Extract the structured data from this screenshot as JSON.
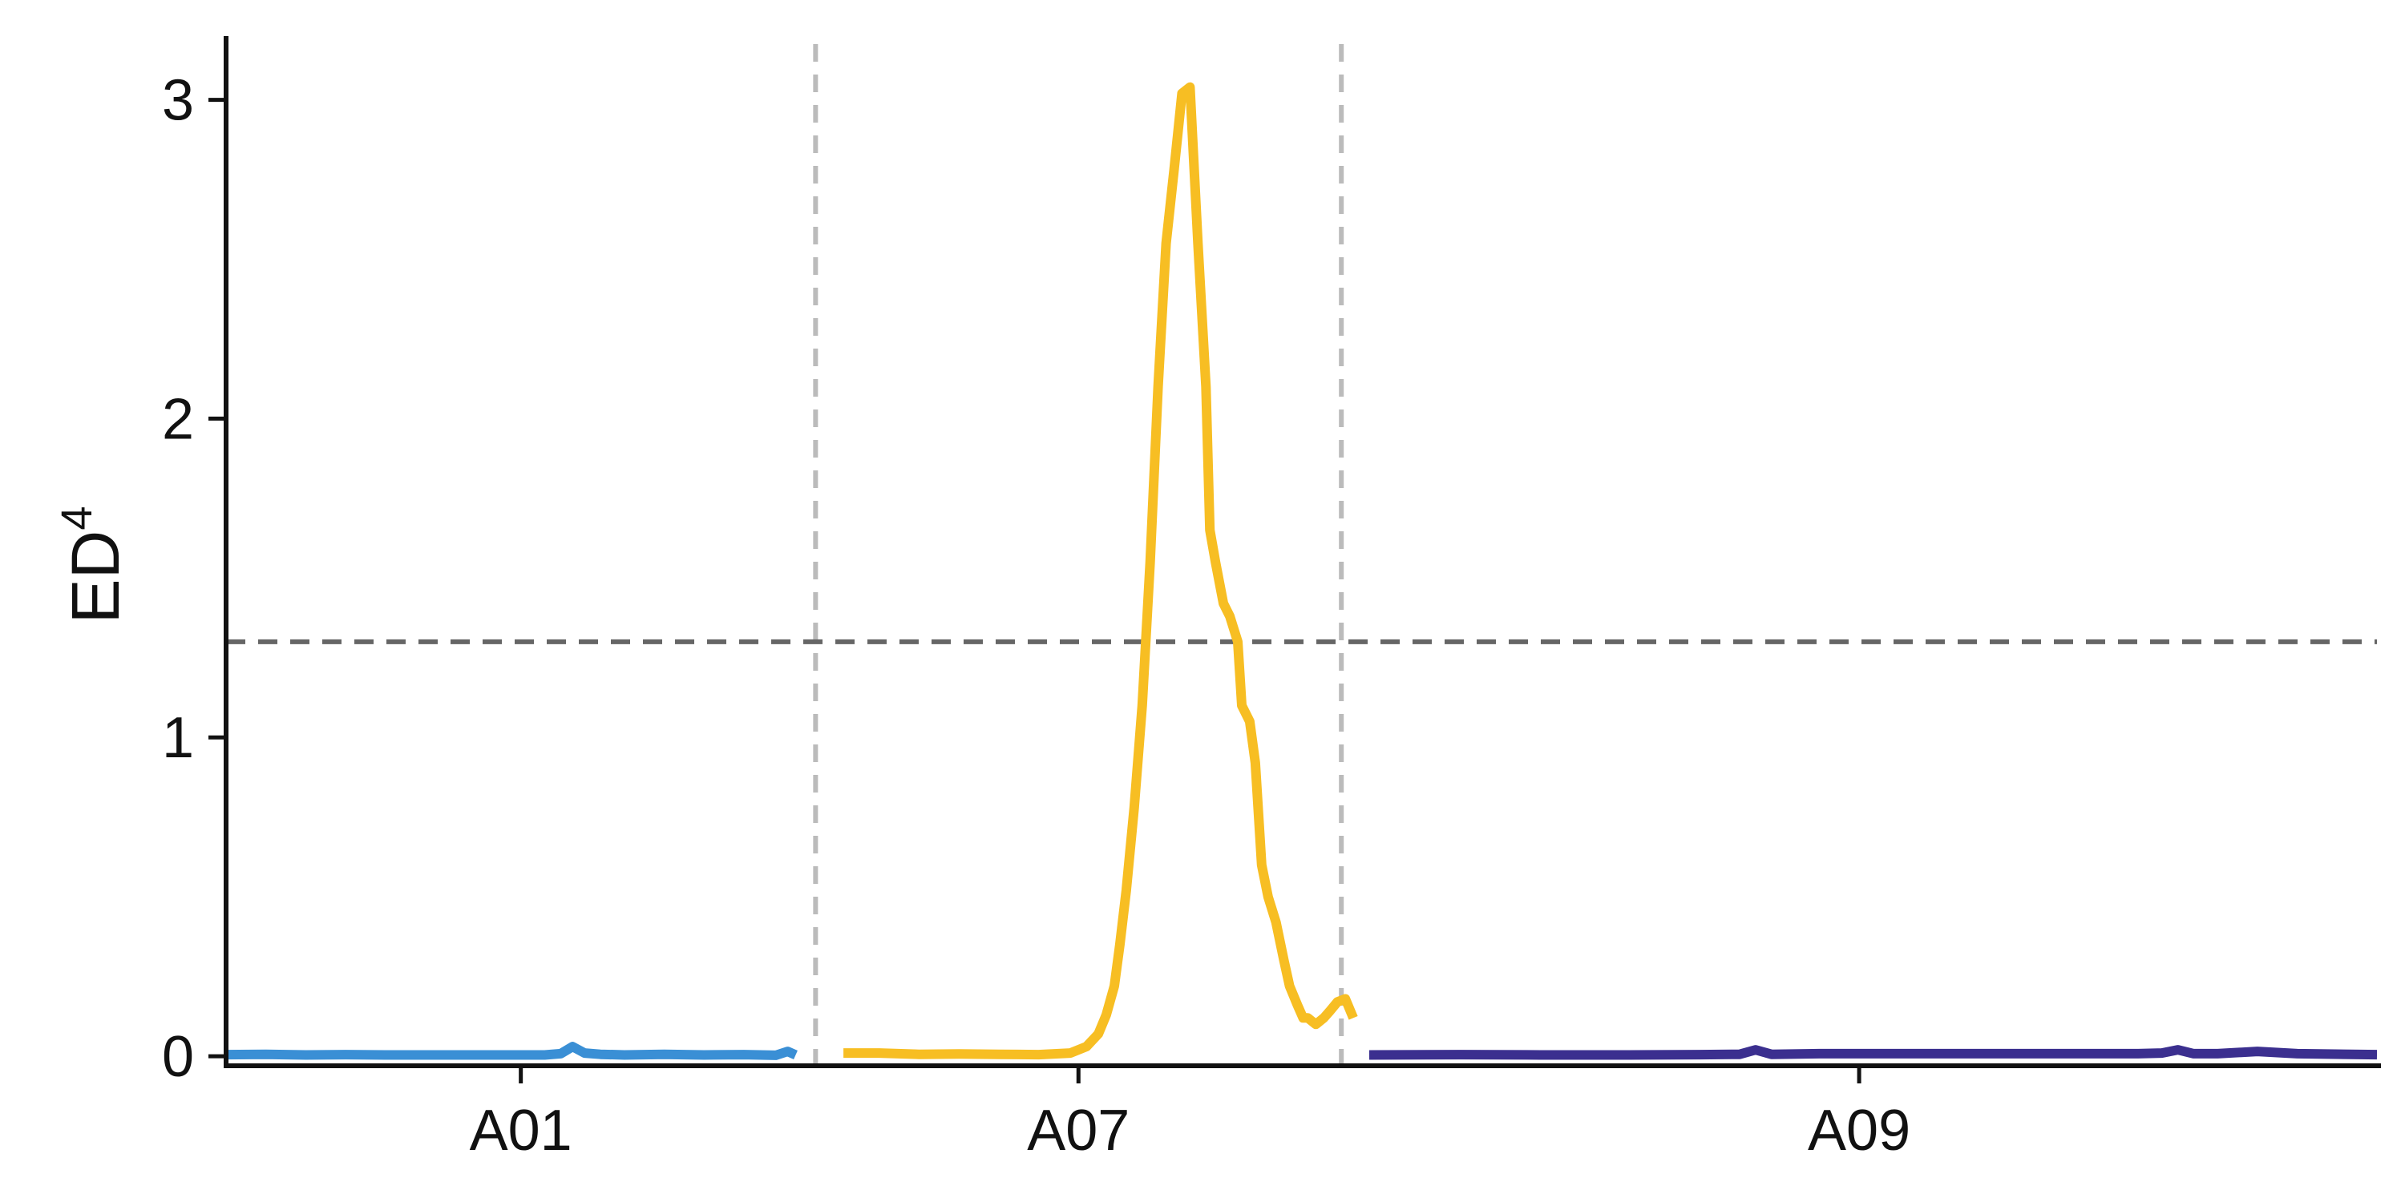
{
  "chart_data": {
    "type": "line",
    "ylabel": "ED",
    "ylabel_superscript": "4",
    "xlabel": "",
    "ylim": [
      -0.03,
      3.2
    ],
    "y_ticks": [
      0,
      1,
      2,
      3
    ],
    "grid": false,
    "threshold": {
      "value": 1.3,
      "style": "dashed",
      "color": "#666666"
    },
    "chromosome_separator_color": "#bbbbbb",
    "chromosomes": [
      {
        "label": "A01",
        "span": [
          0,
          7.4
        ]
      },
      {
        "label": "A07",
        "span": [
          7.4,
          14.0
        ]
      },
      {
        "label": "A09",
        "span": [
          14.0,
          27.0
        ]
      }
    ],
    "series": [
      {
        "chromosome": "A01",
        "color": "#3a8fd5",
        "x": [
          0.0,
          0.5,
          1.0,
          1.5,
          2.0,
          2.5,
          3.0,
          3.5,
          4.0,
          4.2,
          4.35,
          4.5,
          4.7,
          5.0,
          5.5,
          6.0,
          6.5,
          6.9,
          7.05,
          7.15
        ],
        "values": [
          0.005,
          0.006,
          0.004,
          0.005,
          0.004,
          0.004,
          0.004,
          0.004,
          0.004,
          0.008,
          0.03,
          0.01,
          0.006,
          0.004,
          0.006,
          0.004,
          0.005,
          0.003,
          0.015,
          0.004
        ]
      },
      {
        "chromosome": "A07",
        "color": "#f7be23",
        "x": [
          7.75,
          8.2,
          8.7,
          9.2,
          9.7,
          10.2,
          10.6,
          10.8,
          10.95,
          11.05,
          11.15,
          11.22,
          11.3,
          11.4,
          11.5,
          11.6,
          11.7,
          11.8,
          11.9,
          12.0,
          12.1,
          12.2,
          12.3,
          12.35,
          12.42,
          12.52,
          12.6,
          12.7,
          12.75,
          12.85,
          12.92,
          13.0,
          13.08,
          13.18,
          13.28,
          13.35,
          13.45,
          13.52,
          13.58,
          13.68,
          13.78,
          13.85,
          13.95,
          14.05,
          14.15
        ],
        "values": [
          0.01,
          0.01,
          0.006,
          0.007,
          0.006,
          0.005,
          0.01,
          0.03,
          0.07,
          0.13,
          0.22,
          0.35,
          0.52,
          0.78,
          1.1,
          1.55,
          2.1,
          2.55,
          2.78,
          3.02,
          3.04,
          2.55,
          2.1,
          1.65,
          1.55,
          1.42,
          1.38,
          1.3,
          1.1,
          1.05,
          0.92,
          0.6,
          0.5,
          0.42,
          0.3,
          0.22,
          0.16,
          0.12,
          0.12,
          0.1,
          0.12,
          0.14,
          0.17,
          0.18,
          0.12
        ]
      },
      {
        "chromosome": "A09",
        "color": "#3b2f8f",
        "x": [
          14.35,
          15.5,
          16.5,
          17.5,
          18.5,
          19.0,
          19.2,
          19.4,
          20.0,
          21.0,
          22.0,
          23.0,
          23.5,
          24.0,
          24.3,
          24.5,
          24.7,
          25.0,
          25.5,
          26.0,
          27.0
        ],
        "values": [
          0.004,
          0.005,
          0.004,
          0.004,
          0.005,
          0.006,
          0.02,
          0.006,
          0.008,
          0.008,
          0.008,
          0.008,
          0.008,
          0.008,
          0.01,
          0.02,
          0.008,
          0.008,
          0.015,
          0.008,
          0.005
        ]
      }
    ]
  }
}
